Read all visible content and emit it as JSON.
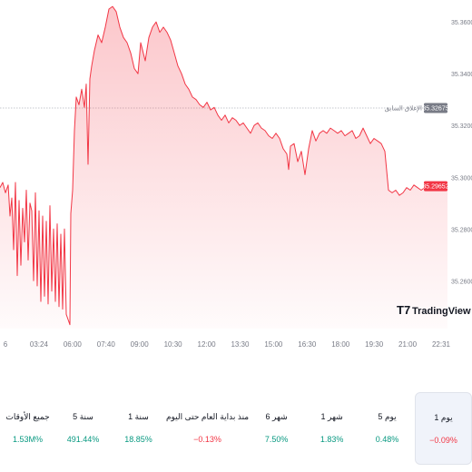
{
  "chart_data": {
    "type": "area",
    "x_ticks": [
      "6",
      "03:24",
      "06:00",
      "07:40",
      "09:00",
      "10:30",
      "12:00",
      "13:30",
      "15:00",
      "16:30",
      "18:00",
      "19:30",
      "21:00",
      "22:31"
    ],
    "y_ticks": [
      "35.36000",
      "35.34000",
      "35.32000",
      "35.30000",
      "35.28000",
      "35.26000"
    ],
    "ylim": [
      35.2415,
      35.3685
    ],
    "previous_close": {
      "label": "الإغلاق السابق",
      "value": "35.32675"
    },
    "last_price": {
      "value": "35.29652"
    },
    "series": [
      {
        "points": [
          [
            0,
            35.296
          ],
          [
            3,
            35.298
          ],
          [
            6,
            35.294
          ],
          [
            9,
            35.297
          ],
          [
            11,
            35.285
          ],
          [
            13,
            35.292
          ],
          [
            15,
            35.272
          ],
          [
            17,
            35.298
          ],
          [
            19,
            35.262
          ],
          [
            21,
            35.291
          ],
          [
            23,
            35.266
          ],
          [
            25,
            35.288
          ],
          [
            27,
            35.275
          ],
          [
            29,
            35.295
          ],
          [
            31,
            35.268
          ],
          [
            33,
            35.29
          ],
          [
            35,
            35.287
          ],
          [
            37,
            35.26
          ],
          [
            39,
            35.294
          ],
          [
            41,
            35.258
          ],
          [
            43,
            35.287
          ],
          [
            45,
            35.252
          ],
          [
            47,
            35.285
          ],
          [
            49,
            35.254
          ],
          [
            51,
            35.283
          ],
          [
            53,
            35.251
          ],
          [
            55,
            35.289
          ],
          [
            57,
            35.256
          ],
          [
            59,
            35.28
          ],
          [
            61,
            35.252
          ],
          [
            63,
            35.282
          ],
          [
            65,
            35.25
          ],
          [
            67,
            35.278
          ],
          [
            69,
            35.249
          ],
          [
            71,
            35.28
          ],
          [
            73,
            35.247
          ],
          [
            75,
            35.245
          ],
          [
            77,
            35.243
          ],
          [
            78,
            35.286
          ],
          [
            80,
            35.295
          ],
          [
            82,
            35.318
          ],
          [
            84,
            35.331
          ],
          [
            87,
            35.328
          ],
          [
            90,
            35.334
          ],
          [
            93,
            35.327
          ],
          [
            95,
            35.336
          ],
          [
            97,
            35.305
          ],
          [
            99,
            35.338
          ],
          [
            101,
            35.343
          ],
          [
            104,
            35.349
          ],
          [
            108,
            35.355
          ],
          [
            112,
            35.352
          ],
          [
            116,
            35.358
          ],
          [
            120,
            35.365
          ],
          [
            124,
            35.366
          ],
          [
            128,
            35.364
          ],
          [
            132,
            35.358
          ],
          [
            136,
            35.354
          ],
          [
            140,
            35.352
          ],
          [
            144,
            35.348
          ],
          [
            148,
            35.342
          ],
          [
            152,
            35.34
          ],
          [
            155,
            35.352
          ],
          [
            160,
            35.345
          ],
          [
            164,
            35.354
          ],
          [
            168,
            35.358
          ],
          [
            172,
            35.36
          ],
          [
            176,
            35.356
          ],
          [
            180,
            35.358
          ],
          [
            184,
            35.356
          ],
          [
            188,
            35.353
          ],
          [
            192,
            35.348
          ],
          [
            196,
            35.343
          ],
          [
            200,
            35.34
          ],
          [
            204,
            35.336
          ],
          [
            208,
            35.334
          ],
          [
            212,
            35.331
          ],
          [
            216,
            35.33
          ],
          [
            220,
            35.328
          ],
          [
            224,
            35.327
          ],
          [
            228,
            35.329
          ],
          [
            232,
            35.326
          ],
          [
            236,
            35.327
          ],
          [
            240,
            35.324
          ],
          [
            244,
            35.322
          ],
          [
            248,
            35.324
          ],
          [
            252,
            35.321
          ],
          [
            256,
            35.323
          ],
          [
            260,
            35.322
          ],
          [
            264,
            35.32
          ],
          [
            268,
            35.321
          ],
          [
            272,
            35.319
          ],
          [
            276,
            35.317
          ],
          [
            280,
            35.32
          ],
          [
            284,
            35.321
          ],
          [
            288,
            35.319
          ],
          [
            292,
            35.318
          ],
          [
            296,
            35.316
          ],
          [
            300,
            35.315
          ],
          [
            304,
            35.317
          ],
          [
            308,
            35.315
          ],
          [
            312,
            35.311
          ],
          [
            316,
            35.309
          ],
          [
            318,
            35.303
          ],
          [
            320,
            35.312
          ],
          [
            324,
            35.313
          ],
          [
            328,
            35.306
          ],
          [
            332,
            35.31
          ],
          [
            336,
            35.301
          ],
          [
            340,
            35.311
          ],
          [
            344,
            35.318
          ],
          [
            348,
            35.314
          ],
          [
            352,
            35.317
          ],
          [
            356,
            35.318
          ],
          [
            360,
            35.317
          ],
          [
            364,
            35.319
          ],
          [
            368,
            35.318
          ],
          [
            372,
            35.317
          ],
          [
            376,
            35.318
          ],
          [
            380,
            35.316
          ],
          [
            384,
            35.317
          ],
          [
            388,
            35.318
          ],
          [
            392,
            35.315
          ],
          [
            396,
            35.316
          ],
          [
            400,
            35.319
          ],
          [
            404,
            35.316
          ],
          [
            408,
            35.313
          ],
          [
            412,
            35.315
          ],
          [
            416,
            35.314
          ],
          [
            420,
            35.313
          ],
          [
            424,
            35.31
          ],
          [
            428,
            35.295
          ],
          [
            432,
            35.294
          ],
          [
            436,
            35.295
          ],
          [
            440,
            35.293
          ],
          [
            444,
            35.294
          ],
          [
            448,
            35.296
          ],
          [
            452,
            35.295
          ],
          [
            456,
            35.297
          ],
          [
            460,
            35.296
          ],
          [
            464,
            35.295
          ],
          [
            468,
            35.296
          ],
          [
            472,
            35.295
          ],
          [
            476,
            35.296
          ],
          [
            480,
            35.296
          ],
          [
            484,
            35.295
          ],
          [
            488,
            35.296
          ],
          [
            493,
            35.2965
          ]
        ]
      }
    ]
  },
  "watermark": "TradingView",
  "periods": [
    {
      "label": "1 يوم",
      "value": "−0.09%",
      "trend": "neg",
      "active": true
    },
    {
      "label": "5 يوم",
      "value": "0.48%",
      "trend": "pos",
      "active": false
    },
    {
      "label": "1 شهر",
      "value": "1.83%",
      "trend": "pos",
      "active": false
    },
    {
      "label": "6 شهر",
      "value": "7.50%",
      "trend": "pos",
      "active": false
    },
    {
      "label": "منذ بداية العام حتى اليوم",
      "value": "−0.13%",
      "trend": "neg",
      "active": false
    },
    {
      "label": "1 سنة",
      "value": "18.85%",
      "trend": "pos",
      "active": false
    },
    {
      "label": "5 سنة",
      "value": "491.44%",
      "trend": "pos",
      "active": false
    },
    {
      "label": "جميع الأوقات",
      "value": "1.53M%",
      "trend": "pos",
      "active": false
    }
  ],
  "colors": {
    "line": "#f23645",
    "area_top": "#f23645",
    "positive": "#089981",
    "negative": "#f23645",
    "tag_prev": "#787b86",
    "tag_last": "#f23645"
  }
}
